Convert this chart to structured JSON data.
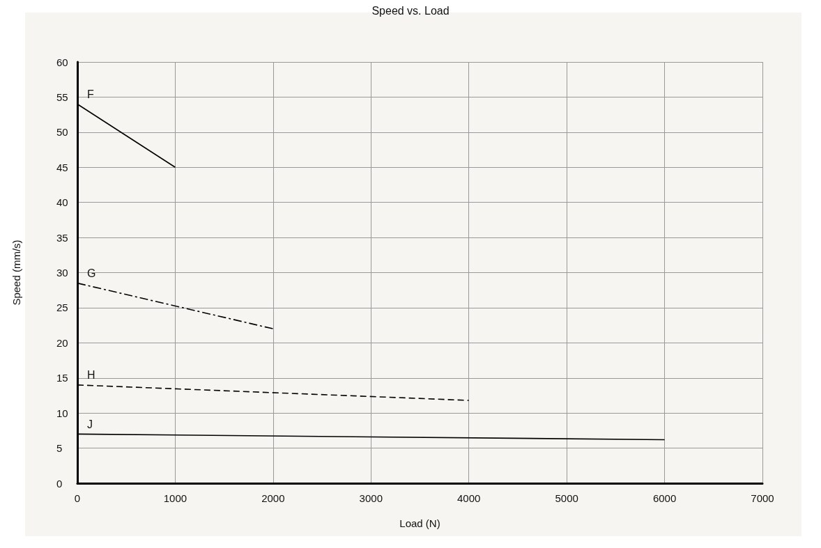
{
  "chart_data": {
    "type": "line",
    "title": "Speed vs. Load",
    "xlabel": "Load (N)",
    "ylabel": "Speed (mm/s)",
    "xlim": [
      0,
      7000
    ],
    "xticks": [
      0,
      1000,
      2000,
      3000,
      4000,
      5000,
      6000,
      7000
    ],
    "ylim": [
      0,
      60
    ],
    "yticks": [
      0,
      5,
      10,
      15,
      20,
      25,
      30,
      35,
      40,
      45,
      50,
      55,
      60
    ],
    "grid": true,
    "legend": false,
    "marker": "none",
    "series": [
      {
        "name": "F",
        "color": "#000000",
        "line_style": "solid",
        "x": [
          0,
          1000
        ],
        "values": [
          54,
          45
        ]
      },
      {
        "name": "G",
        "color": "#000000",
        "line_style": "dashdot",
        "x": [
          0,
          2000
        ],
        "values": [
          28.5,
          22
        ]
      },
      {
        "name": "H",
        "color": "#000000",
        "line_style": "dashed",
        "x": [
          0,
          4000
        ],
        "values": [
          14,
          11.8
        ]
      },
      {
        "name": "J",
        "color": "#000000",
        "line_style": "solid",
        "x": [
          0,
          6000
        ],
        "values": [
          7,
          6.2
        ]
      }
    ]
  }
}
